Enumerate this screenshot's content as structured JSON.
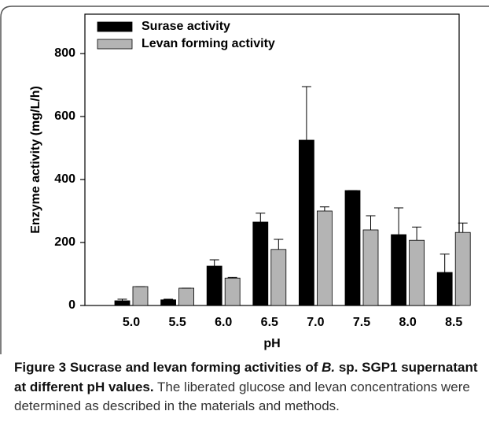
{
  "chart_data": {
    "type": "bar",
    "categories": [
      "5.0",
      "5.5",
      "6.0",
      "6.5",
      "7.0",
      "7.5",
      "8.0",
      "8.5"
    ],
    "series": [
      {
        "name": "Surase activity",
        "color": "#000000",
        "values": [
          15,
          18,
          125,
          265,
          525,
          365,
          225,
          105
        ],
        "errors": [
          5,
          2,
          20,
          28,
          170,
          0,
          85,
          58
        ]
      },
      {
        "name": "Levan forming activity",
        "color": "#b4b4b4",
        "values": [
          60,
          55,
          87,
          178,
          300,
          240,
          207,
          232
        ],
        "errors": [
          0,
          0,
          2,
          32,
          13,
          45,
          42,
          30
        ]
      }
    ],
    "xlabel": "pH",
    "ylabel": "Enzyme activity (mg/L/h)",
    "ylim": [
      0,
      925
    ],
    "yticks": [
      0,
      200,
      400,
      600,
      800
    ],
    "grid": false,
    "legend": "upper left"
  },
  "caption": {
    "bold": [
      "Figure 3 Sucrase and levan forming activities of ",
      "B.",
      " sp. SGP1 supernatant at different pH values."
    ],
    "text": " The liberated glucose and levan concentrations were determined as described in the materials and methods."
  }
}
